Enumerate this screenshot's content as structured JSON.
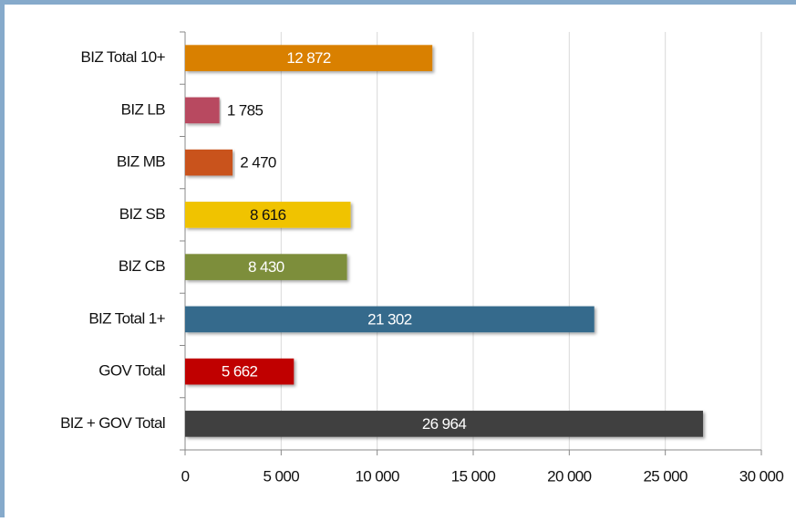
{
  "chart_data": {
    "type": "bar",
    "orientation": "horizontal",
    "categories": [
      "BIZ Total 10+",
      "BIZ LB",
      "BIZ MB",
      "BIZ SB",
      "BIZ CB",
      "BIZ Total 1+",
      "GOV Total",
      "BIZ + GOV Total"
    ],
    "values": [
      12872,
      1785,
      2470,
      8616,
      8430,
      21302,
      5662,
      26964
    ],
    "value_labels": [
      "12 872",
      "1 785",
      "2 470",
      "8 616",
      "8 430",
      "21 302",
      "5 662",
      "26 964"
    ],
    "colors": [
      "#d98000",
      "#b84a60",
      "#c9521f",
      "#f0c300",
      "#7d8e3a",
      "#366b8c",
      "#c00000",
      "#404040"
    ],
    "xlim": [
      0,
      30000
    ],
    "xticks": [
      0,
      {
        "value": 5000,
        "label": "5 000"
      },
      {
        "value": 10000,
        "label": "10 000"
      },
      {
        "value": 15000,
        "label": "15 000"
      },
      {
        "value": 20000,
        "label": "20 000"
      },
      {
        "value": 25000,
        "label": "25 000"
      },
      {
        "value": 30000,
        "label": "30 000"
      }
    ],
    "grid": true
  }
}
